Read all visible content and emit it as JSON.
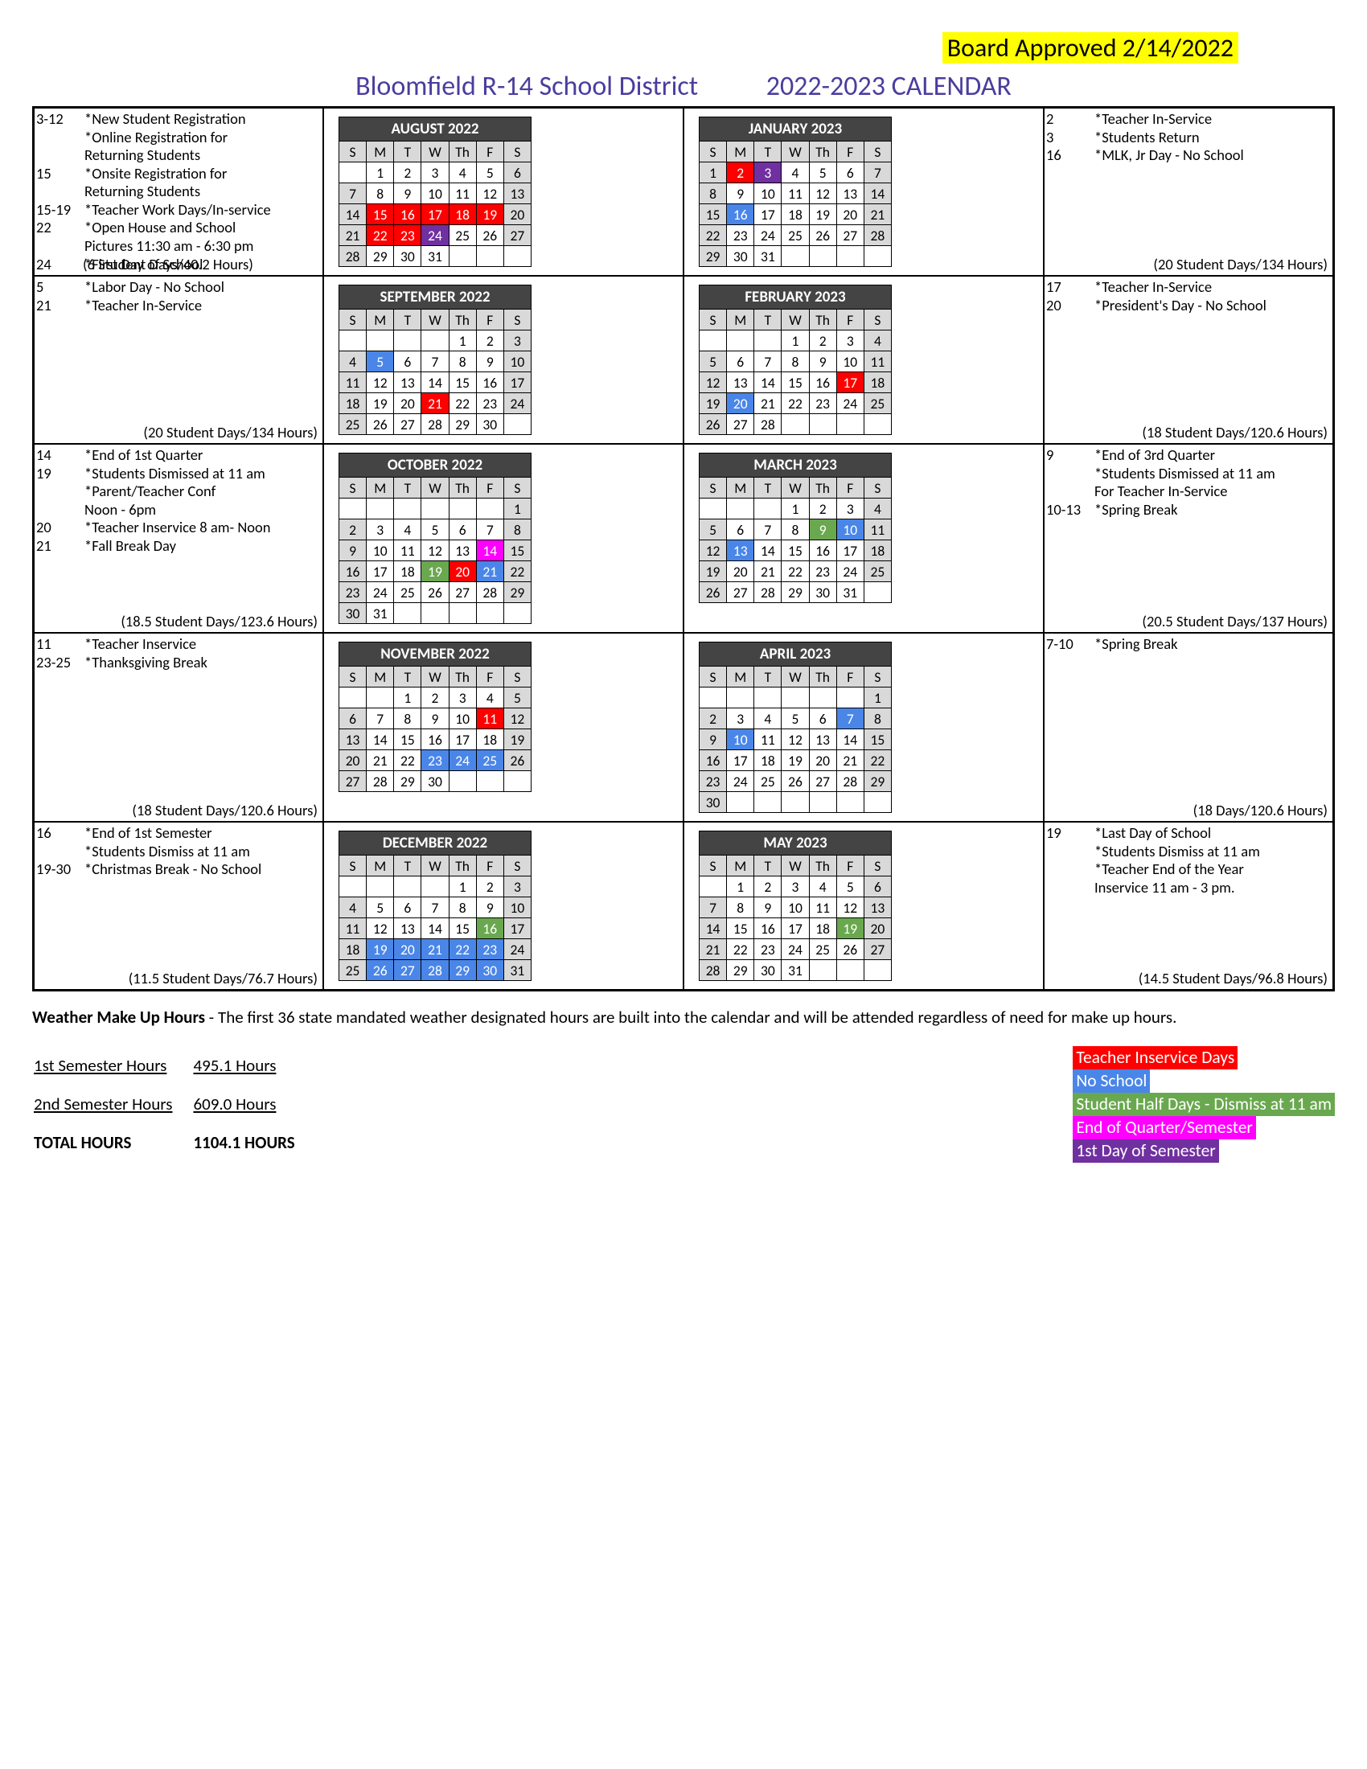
{
  "approved": "Board Approved 2/14/2022",
  "title_left": "Bloomfield R-14 School District",
  "title_right": "2022-2023 CALENDAR",
  "colors": {
    "red": "#ff0000",
    "blue": "#4a86e8",
    "green": "#6aa84f",
    "pink": "#ff00ff",
    "purple": "#7030a0",
    "gray": "#d9d9d9",
    "header": "#444444",
    "title": "#4a3d9e",
    "yellow": "#ffff00"
  },
  "dow": [
    "S",
    "M",
    "T",
    "W",
    "Th",
    "F",
    "S"
  ],
  "left": [
    {
      "events": [
        {
          "d": "3-12",
          "t": "*New Student Registration"
        },
        {
          "d": "",
          "t": "*Online Registration for"
        },
        {
          "d": "",
          "t": "   Returning Students",
          "indent": true
        },
        {
          "d": "15",
          "t": "*Onsite Registration for"
        },
        {
          "d": "",
          "t": "   Returning Students",
          "indent": true
        },
        {
          "d": "15-19",
          "t": "*Teacher Work Days/In-service"
        },
        {
          "d": "22",
          "t": "*Open House and School"
        },
        {
          "d": "",
          "t": "   Pictures 11:30 am - 6:30 pm",
          "indent": true
        },
        {
          "d": "24",
          "t": "*First Day of School"
        }
      ],
      "foot": "(6 Student Days/40.2 Hours)",
      "foot_align": "left"
    },
    {
      "events": [
        {
          "d": "5",
          "t": "*Labor Day - No School"
        },
        {
          "d": "21",
          "t": "*Teacher In-Service"
        }
      ],
      "foot": "(20 Student Days/134 Hours)"
    },
    {
      "events": [
        {
          "d": "14",
          "t": "*End of 1st Quarter"
        },
        {
          "d": "19",
          "t": "*Students Dismissed at 11 am"
        },
        {
          "d": "",
          "t": "*Parent/Teacher Conf"
        },
        {
          "d": "",
          "t": "   Noon - 6pm",
          "indent": true
        },
        {
          "d": "20",
          "t": "*Teacher Inservice 8 am- Noon"
        },
        {
          "d": "21",
          "t": "*Fall Break Day"
        }
      ],
      "foot": "(18.5 Student Days/123.6 Hours)"
    },
    {
      "events": [
        {
          "d": "11",
          "t": "*Teacher Inservice"
        },
        {
          "d": "23-25",
          "t": "*Thanksgiving Break"
        }
      ],
      "foot": "(18 Student Days/120.6 Hours)"
    },
    {
      "events": [
        {
          "d": "16",
          "t": "*End of 1st Semester"
        },
        {
          "d": "",
          "t": "*Students Dismiss at 11 am"
        },
        {
          "d": "19-30",
          "t": "*Christmas Break - No School"
        }
      ],
      "foot": "(11.5 Student Days/76.7 Hours)"
    }
  ],
  "right": [
    {
      "events": [
        {
          "d": "2",
          "t": "*Teacher In-Service"
        },
        {
          "d": "3",
          "t": "*Students Return"
        },
        {
          "d": "16",
          "t": "*MLK, Jr Day - No School"
        }
      ],
      "foot": "(20 Student Days/134 Hours)"
    },
    {
      "events": [
        {
          "d": "17",
          "t": "*Teacher In-Service"
        },
        {
          "d": "20",
          "t": "*President's Day - No School"
        }
      ],
      "foot": "(18 Student Days/120.6 Hours)"
    },
    {
      "events": [
        {
          "d": "9",
          "t": "*End of 3rd Quarter"
        },
        {
          "d": "",
          "t": "*Students Dismissed at 11 am"
        },
        {
          "d": "",
          "t": "   For Teacher In-Service",
          "indent": true
        },
        {
          "d": "10-13",
          "t": "*Spring Break"
        }
      ],
      "foot": "(20.5 Student Days/137 Hours)"
    },
    {
      "events": [
        {
          "d": "7-10",
          "t": "*Spring Break"
        }
      ],
      "foot": "(18 Days/120.6 Hours)"
    },
    {
      "events": [
        {
          "d": "19",
          "t": "*Last Day of School"
        },
        {
          "d": "",
          "t": "*Students Dismiss at 11 am"
        },
        {
          "d": "",
          "t": "*Teacher End of the Year"
        },
        {
          "d": "",
          "t": "   Inservice 11 am - 3 pm.",
          "indent": true
        }
      ],
      "foot": "(14.5 Student Days/96.8 Hours)"
    }
  ],
  "months_left": [
    {
      "name": "AUGUST 2022",
      "start": 1,
      "days": 31,
      "gray": [
        6,
        7,
        13,
        14,
        20,
        21,
        27,
        28
      ],
      "styles": {
        "15": "red",
        "16": "red",
        "17": "red",
        "18": "red",
        "19": "red",
        "22": "red",
        "23": "red",
        "24": "purple"
      }
    },
    {
      "name": "SEPTEMBER 2022",
      "start": 4,
      "days": 30,
      "gray": [
        3,
        4,
        10,
        11,
        17,
        18,
        24,
        25
      ],
      "styles": {
        "5": "blue",
        "21": "red"
      }
    },
    {
      "name": "OCTOBER 2022",
      "start": 6,
      "days": 31,
      "gray": [
        1,
        2,
        8,
        9,
        15,
        16,
        22,
        23,
        29,
        30
      ],
      "styles": {
        "14": "pink",
        "19": "green",
        "20": "red",
        "21": "blue"
      }
    },
    {
      "name": "NOVEMBER 2022",
      "start": 2,
      "days": 30,
      "gray": [
        5,
        6,
        12,
        13,
        19,
        20,
        26,
        27
      ],
      "styles": {
        "11": "red",
        "23": "blue",
        "24": "blue",
        "25": "blue"
      }
    },
    {
      "name": "DECEMBER 2022",
      "start": 4,
      "days": 31,
      "gray": [
        3,
        4,
        10,
        11,
        17,
        18,
        24,
        25,
        31
      ],
      "styles": {
        "16": "green",
        "19": "blue",
        "20": "blue",
        "21": "blue",
        "22": "blue",
        "23": "blue",
        "26": "blue",
        "27": "blue",
        "28": "blue",
        "29": "blue",
        "30": "blue"
      }
    }
  ],
  "months_right": [
    {
      "name": "JANUARY 2023",
      "start": 0,
      "days": 31,
      "gray": [
        1,
        7,
        8,
        14,
        15,
        21,
        22,
        28,
        29
      ],
      "styles": {
        "2": "red",
        "3": "purple",
        "16": "blue"
      }
    },
    {
      "name": "FEBRUARY 2023",
      "start": 3,
      "days": 28,
      "gray": [
        4,
        5,
        11,
        12,
        18,
        19,
        25,
        26
      ],
      "styles": {
        "17": "red",
        "20": "blue"
      }
    },
    {
      "name": "MARCH 2023",
      "start": 3,
      "days": 31,
      "gray": [
        4,
        5,
        11,
        12,
        18,
        19,
        25,
        26
      ],
      "styles": {
        "9": "green",
        "10": "blue",
        "13": "blue"
      }
    },
    {
      "name": "APRIL 2023",
      "start": 6,
      "days": 30,
      "gray": [
        1,
        2,
        8,
        9,
        15,
        16,
        22,
        23,
        29,
        30
      ],
      "styles": {
        "7": "blue",
        "10": "blue"
      }
    },
    {
      "name": "MAY 2023",
      "start": 1,
      "days": 31,
      "gray": [
        6,
        7,
        13,
        14,
        20,
        21,
        27,
        28
      ],
      "styles": {
        "19": "green"
      }
    }
  ],
  "weather_b": "Weather Make Up Hours",
  "weather": " - The first 36 state mandated weather designated hours are built into the calendar and will be attended regardless of need for make up hours.",
  "hours": [
    [
      "1st Semester Hours",
      "495.1 Hours",
      true
    ],
    [
      "2nd Semester Hours",
      "609.0 Hours",
      true
    ],
    [
      "TOTAL HOURS",
      "1104.1 HOURS",
      false
    ]
  ],
  "legend": [
    {
      "t": "Teacher Inservice Days",
      "c": "red"
    },
    {
      "t": "No School",
      "c": "blue"
    },
    {
      "t": "Student Half Days - Dismiss at 11 am",
      "c": "green"
    },
    {
      "t": "End of Quarter/Semester",
      "c": "pink"
    },
    {
      "t": "1st Day of Semester",
      "c": "purple"
    }
  ]
}
